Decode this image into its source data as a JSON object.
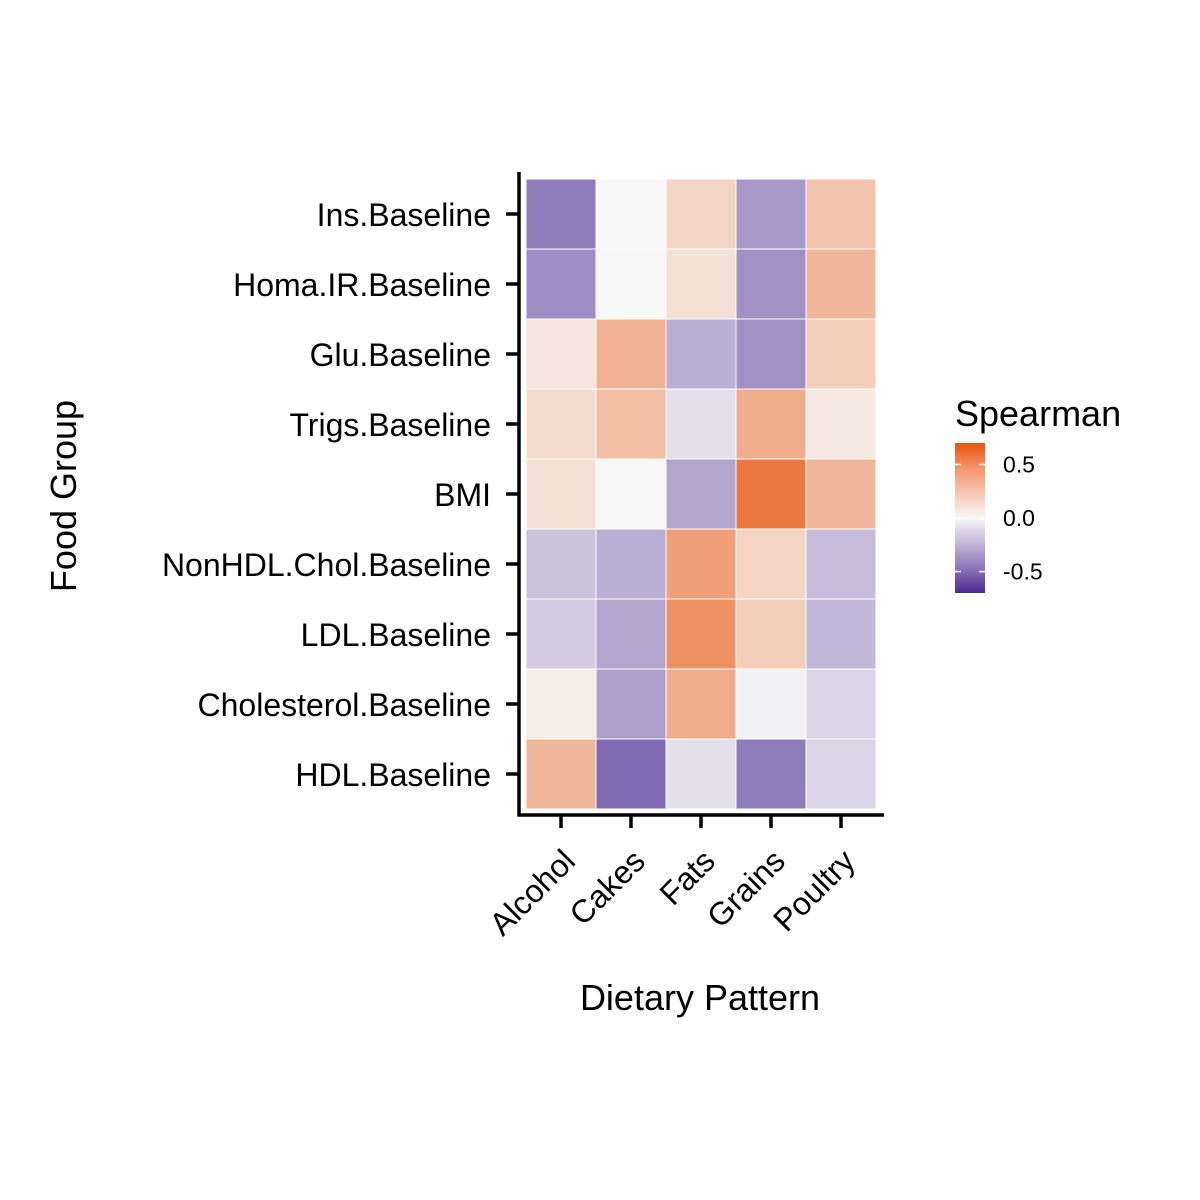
{
  "chart_data": {
    "type": "heatmap",
    "xlabel": "Dietary Pattern",
    "ylabel": "Food Group",
    "x_categories": [
      "Alcohol",
      "Cakes",
      "Fats",
      "Grains",
      "Poultry"
    ],
    "y_categories": [
      "Ins.Baseline",
      "Homa.IR.Baseline",
      "Glu.Baseline",
      "Trigs.Baseline",
      "BMI",
      "NonHDL.Chol.Baseline",
      "LDL.Baseline",
      "Cholesterol.Baseline",
      "HDL.Baseline"
    ],
    "values": [
      [
        -0.42,
        0.0,
        0.15,
        -0.32,
        0.22
      ],
      [
        -0.36,
        0.0,
        0.1,
        -0.35,
        0.28
      ],
      [
        0.08,
        0.3,
        -0.25,
        -0.35,
        0.18
      ],
      [
        0.12,
        0.25,
        -0.08,
        0.32,
        0.06
      ],
      [
        0.1,
        0.0,
        -0.28,
        0.55,
        0.28
      ],
      [
        -0.18,
        -0.25,
        0.38,
        0.15,
        -0.2
      ],
      [
        -0.15,
        -0.28,
        0.45,
        0.18,
        -0.22
      ],
      [
        0.05,
        -0.3,
        0.32,
        -0.02,
        -0.12
      ],
      [
        0.28,
        -0.48,
        -0.08,
        -0.42,
        -0.12
      ]
    ],
    "legend": {
      "title": "Spearman",
      "position": "right",
      "ticks": [
        {
          "value": 0.5,
          "label": "0.5"
        },
        {
          "value": 0.0,
          "label": "0.0"
        },
        {
          "value": -0.5,
          "label": "-0.5"
        }
      ],
      "range": [
        -0.7,
        0.7
      ]
    },
    "colors": {
      "low": "#4a2a91",
      "mid": "#f7f7f7",
      "high": "#e8560f"
    }
  }
}
